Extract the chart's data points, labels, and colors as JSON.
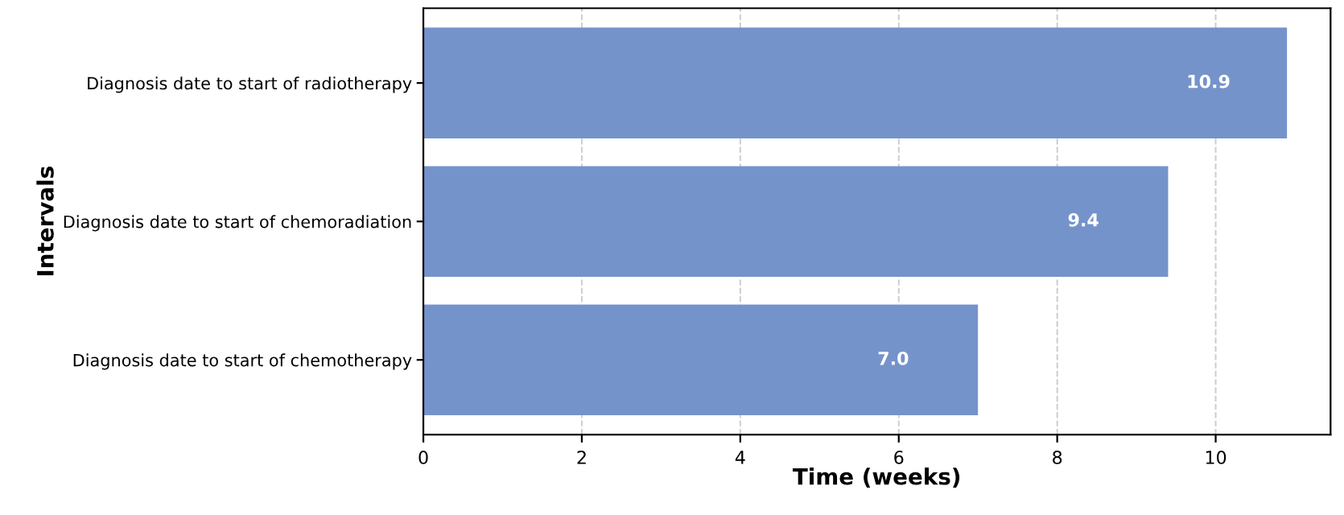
{
  "chart_data": {
    "type": "bar",
    "orientation": "horizontal",
    "xlabel": "Time (weeks)",
    "ylabel": "Intervals",
    "categories": [
      "Diagnosis date to start of radiotherapy",
      "Diagnosis date to start of chemoradiation",
      "Diagnosis date to start of chemotherapy"
    ],
    "values": [
      10.9,
      9.4,
      7.0
    ],
    "value_labels": [
      "10.9",
      "9.4",
      "7.0"
    ],
    "color": "#7593cb",
    "xlim": [
      0,
      11.45
    ],
    "xticks": [
      0,
      2,
      4,
      6,
      8,
      10
    ],
    "grid": "x"
  }
}
